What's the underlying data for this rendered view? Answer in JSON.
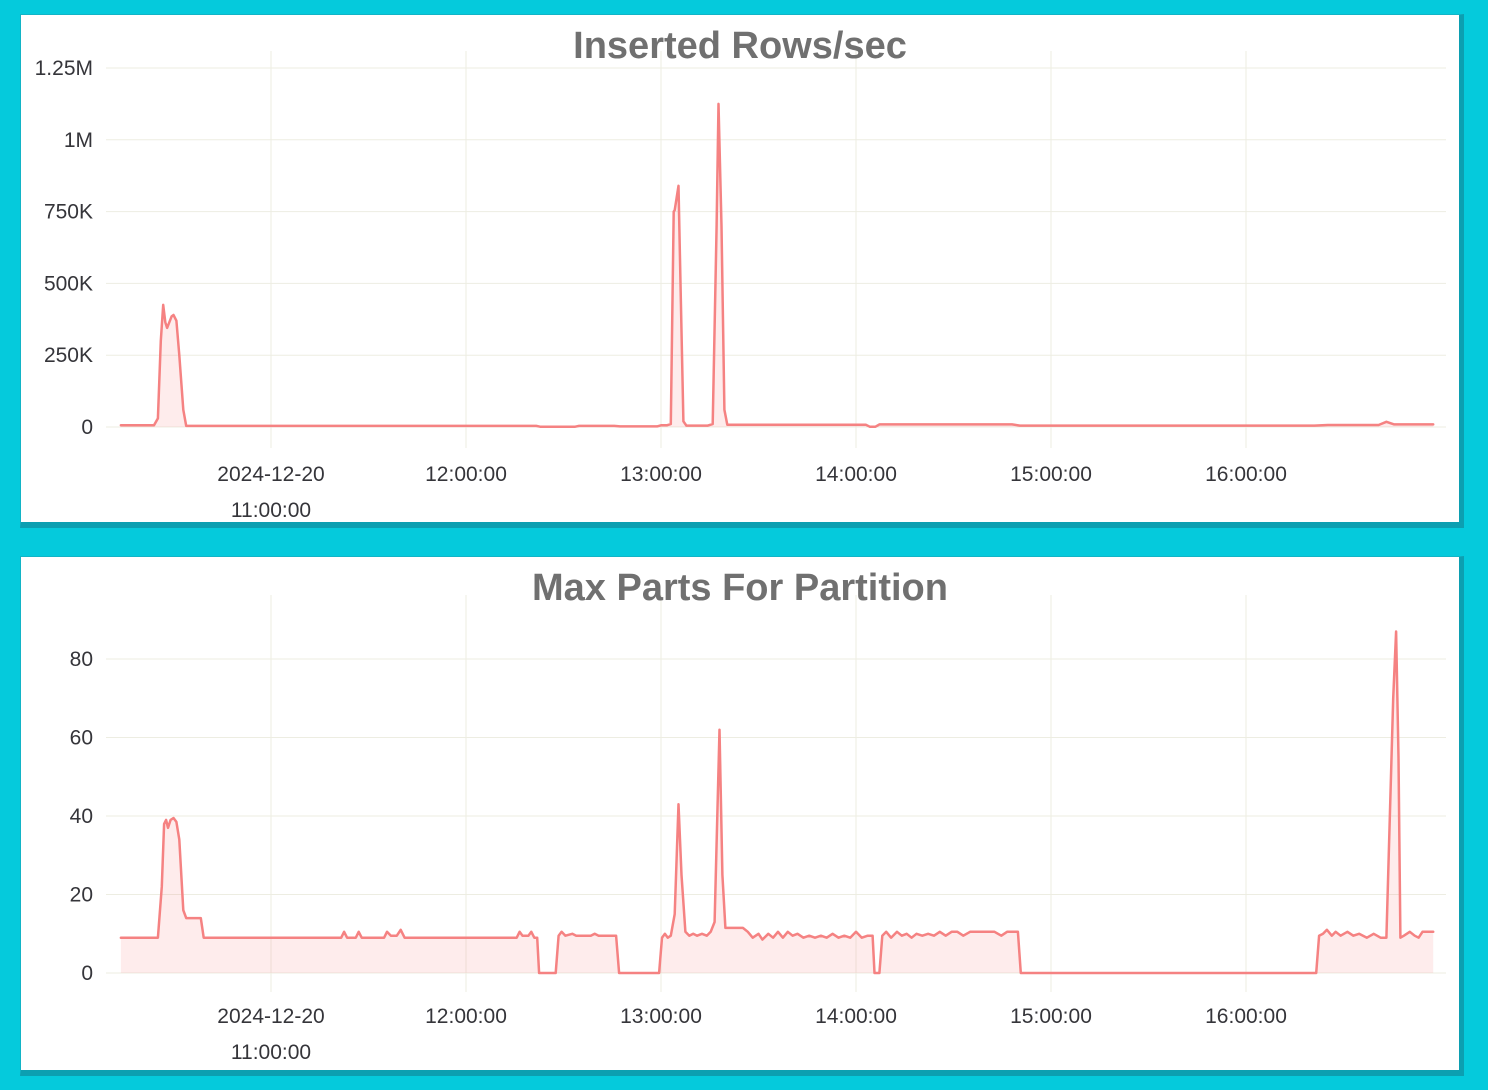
{
  "page": {
    "background_color": "#05CADC",
    "card_edge_color": "#0C9FB1",
    "card_background": "#FFFFFF"
  },
  "chart_data": [
    {
      "type": "area",
      "title": "Inserted Rows/sec",
      "xlabel": "",
      "ylabel": "",
      "grid": true,
      "legend": false,
      "line_color": "#F58282",
      "fill_color": "rgba(245,130,130,0.15)",
      "grid_color": "#EDEDE2",
      "x_unit": "hours on 2024-12-20",
      "x_range": [
        10.22,
        16.98
      ],
      "ylim": [
        0,
        1250000
      ],
      "y_ticks": [
        {
          "value": 0,
          "label": "0"
        },
        {
          "value": 250000,
          "label": "250K"
        },
        {
          "value": 500000,
          "label": "500K"
        },
        {
          "value": 750000,
          "label": "750K"
        },
        {
          "value": 1000000,
          "label": "1M"
        },
        {
          "value": 1250000,
          "label": "1.25M"
        }
      ],
      "x_ticks": [
        {
          "value": 11,
          "lines": [
            "2024-12-20",
            "11:00:00"
          ]
        },
        {
          "value": 12,
          "lines": [
            "12:00:00"
          ]
        },
        {
          "value": 13,
          "lines": [
            "13:00:00"
          ]
        },
        {
          "value": 14,
          "lines": [
            "14:00:00"
          ]
        },
        {
          "value": 15,
          "lines": [
            "15:00:00"
          ]
        },
        {
          "value": 16,
          "lines": [
            "16:00:00"
          ]
        }
      ],
      "points": [
        [
          10.23,
          6000
        ],
        [
          10.4,
          6000
        ],
        [
          10.42,
          30000
        ],
        [
          10.435,
          300000
        ],
        [
          10.447,
          425000
        ],
        [
          10.458,
          365000
        ],
        [
          10.467,
          345000
        ],
        [
          10.49,
          385000
        ],
        [
          10.5,
          390000
        ],
        [
          10.515,
          370000
        ],
        [
          10.53,
          250000
        ],
        [
          10.55,
          60000
        ],
        [
          10.565,
          4000
        ],
        [
          10.8,
          4000
        ],
        [
          11.5,
          4000
        ],
        [
          12.3,
          4000
        ],
        [
          12.36,
          4000
        ],
        [
          12.38,
          1000
        ],
        [
          12.56,
          1000
        ],
        [
          12.58,
          4000
        ],
        [
          12.76,
          4000
        ],
        [
          12.79,
          2000
        ],
        [
          12.98,
          2000
        ],
        [
          13.0,
          6000
        ],
        [
          13.03,
          6000
        ],
        [
          13.05,
          10000
        ],
        [
          13.065,
          750000
        ],
        [
          13.07,
          755000
        ],
        [
          13.09,
          840000
        ],
        [
          13.1,
          500000
        ],
        [
          13.115,
          20000
        ],
        [
          13.13,
          5000
        ],
        [
          13.24,
          5000
        ],
        [
          13.265,
          10000
        ],
        [
          13.285,
          700000
        ],
        [
          13.295,
          1125000
        ],
        [
          13.31,
          700000
        ],
        [
          13.325,
          60000
        ],
        [
          13.34,
          8000
        ],
        [
          13.6,
          8000
        ],
        [
          14.05,
          8000
        ],
        [
          14.07,
          1000
        ],
        [
          14.1,
          1000
        ],
        [
          14.12,
          9000
        ],
        [
          14.5,
          9000
        ],
        [
          14.8,
          9000
        ],
        [
          14.84,
          5000
        ],
        [
          15.3,
          5000
        ],
        [
          16.0,
          5000
        ],
        [
          16.35,
          5000
        ],
        [
          16.42,
          7000
        ],
        [
          16.68,
          7000
        ],
        [
          16.72,
          18000
        ],
        [
          16.76,
          9000
        ],
        [
          16.96,
          9000
        ]
      ]
    },
    {
      "type": "area",
      "title": "Max Parts For Partition",
      "xlabel": "",
      "ylabel": "",
      "grid": true,
      "legend": false,
      "line_color": "#F58282",
      "fill_color": "rgba(245,130,130,0.15)",
      "grid_color": "#EDEDE2",
      "x_unit": "hours on 2024-12-20",
      "x_range": [
        10.22,
        16.98
      ],
      "ylim": [
        0,
        88
      ],
      "y_ticks": [
        {
          "value": 0,
          "label": "0"
        },
        {
          "value": 20,
          "label": "20"
        },
        {
          "value": 40,
          "label": "40"
        },
        {
          "value": 60,
          "label": "60"
        },
        {
          "value": 80,
          "label": "80"
        }
      ],
      "x_ticks": [
        {
          "value": 11,
          "lines": [
            "2024-12-20",
            "11:00:00"
          ]
        },
        {
          "value": 12,
          "lines": [
            "12:00:00"
          ]
        },
        {
          "value": 13,
          "lines": [
            "13:00:00"
          ]
        },
        {
          "value": 14,
          "lines": [
            "14:00:00"
          ]
        },
        {
          "value": 15,
          "lines": [
            "15:00:00"
          ]
        },
        {
          "value": 16,
          "lines": [
            "16:00:00"
          ]
        }
      ],
      "points": [
        [
          10.23,
          9
        ],
        [
          10.42,
          9
        ],
        [
          10.44,
          22
        ],
        [
          10.452,
          38
        ],
        [
          10.462,
          39
        ],
        [
          10.472,
          37
        ],
        [
          10.485,
          39
        ],
        [
          10.5,
          39.5
        ],
        [
          10.515,
          38.5
        ],
        [
          10.53,
          34
        ],
        [
          10.55,
          16
        ],
        [
          10.565,
          14
        ],
        [
          10.64,
          14
        ],
        [
          10.655,
          9
        ],
        [
          10.75,
          9
        ],
        [
          11.0,
          9
        ],
        [
          11.36,
          9
        ],
        [
          11.375,
          10.5
        ],
        [
          11.39,
          9
        ],
        [
          11.435,
          9
        ],
        [
          11.45,
          10.5
        ],
        [
          11.465,
          9
        ],
        [
          11.58,
          9
        ],
        [
          11.595,
          10.5
        ],
        [
          11.615,
          9.5
        ],
        [
          11.645,
          9.5
        ],
        [
          11.665,
          11
        ],
        [
          11.685,
          9
        ],
        [
          11.9,
          9
        ],
        [
          12.2,
          9
        ],
        [
          12.26,
          9
        ],
        [
          12.275,
          10.5
        ],
        [
          12.29,
          9.5
        ],
        [
          12.32,
          9.5
        ],
        [
          12.335,
          10.5
        ],
        [
          12.35,
          9
        ],
        [
          12.365,
          9
        ],
        [
          12.375,
          0
        ],
        [
          12.46,
          0
        ],
        [
          12.475,
          9.5
        ],
        [
          12.49,
          10.5
        ],
        [
          12.51,
          9.5
        ],
        [
          12.545,
          10
        ],
        [
          12.565,
          9.5
        ],
        [
          12.64,
          9.5
        ],
        [
          12.66,
          10
        ],
        [
          12.68,
          9.5
        ],
        [
          12.77,
          9.5
        ],
        [
          12.785,
          0
        ],
        [
          12.99,
          0
        ],
        [
          13.005,
          9
        ],
        [
          13.02,
          10
        ],
        [
          13.035,
          9
        ],
        [
          13.05,
          9.5
        ],
        [
          13.07,
          15
        ],
        [
          13.09,
          43
        ],
        [
          13.105,
          25
        ],
        [
          13.125,
          10.5
        ],
        [
          13.145,
          9.5
        ],
        [
          13.165,
          10
        ],
        [
          13.185,
          9.5
        ],
        [
          13.21,
          10
        ],
        [
          13.235,
          9.5
        ],
        [
          13.255,
          10.5
        ],
        [
          13.275,
          13
        ],
        [
          13.3,
          62
        ],
        [
          13.315,
          25
        ],
        [
          13.33,
          11.5
        ],
        [
          13.42,
          11.5
        ],
        [
          13.445,
          10.5
        ],
        [
          13.47,
          9
        ],
        [
          13.5,
          10
        ],
        [
          13.52,
          8.5
        ],
        [
          13.55,
          10
        ],
        [
          13.575,
          9
        ],
        [
          13.6,
          10.5
        ],
        [
          13.625,
          9
        ],
        [
          13.65,
          10.5
        ],
        [
          13.675,
          9.5
        ],
        [
          13.7,
          10
        ],
        [
          13.73,
          9
        ],
        [
          13.76,
          9.5
        ],
        [
          13.79,
          9
        ],
        [
          13.82,
          9.5
        ],
        [
          13.85,
          9
        ],
        [
          13.88,
          10
        ],
        [
          13.91,
          9
        ],
        [
          13.94,
          9.5
        ],
        [
          13.97,
          9
        ],
        [
          14.0,
          10.5
        ],
        [
          14.03,
          9
        ],
        [
          14.06,
          9.5
        ],
        [
          14.085,
          9.5
        ],
        [
          14.095,
          0
        ],
        [
          14.12,
          0
        ],
        [
          14.135,
          9.5
        ],
        [
          14.155,
          10.5
        ],
        [
          14.18,
          9
        ],
        [
          14.21,
          10.5
        ],
        [
          14.235,
          9.5
        ],
        [
          14.26,
          10
        ],
        [
          14.285,
          9
        ],
        [
          14.31,
          10
        ],
        [
          14.34,
          9.5
        ],
        [
          14.37,
          10
        ],
        [
          14.4,
          9.5
        ],
        [
          14.43,
          10.5
        ],
        [
          14.46,
          9.5
        ],
        [
          14.49,
          10.5
        ],
        [
          14.52,
          10.5
        ],
        [
          14.55,
          9.5
        ],
        [
          14.585,
          10.5
        ],
        [
          14.63,
          10.5
        ],
        [
          14.67,
          10.5
        ],
        [
          14.71,
          10.5
        ],
        [
          14.745,
          9.5
        ],
        [
          14.775,
          10.5
        ],
        [
          14.83,
          10.5
        ],
        [
          14.845,
          0
        ],
        [
          15.2,
          0
        ],
        [
          15.8,
          0
        ],
        [
          16.36,
          0
        ],
        [
          16.375,
          9.5
        ],
        [
          16.395,
          10
        ],
        [
          16.415,
          11
        ],
        [
          16.44,
          9.5
        ],
        [
          16.46,
          10.5
        ],
        [
          16.485,
          9.5
        ],
        [
          16.52,
          10.5
        ],
        [
          16.55,
          9.5
        ],
        [
          16.58,
          10
        ],
        [
          16.62,
          9
        ],
        [
          16.655,
          10
        ],
        [
          16.69,
          9
        ],
        [
          16.72,
          9
        ],
        [
          16.755,
          70
        ],
        [
          16.77,
          87
        ],
        [
          16.782,
          55
        ],
        [
          16.792,
          9
        ],
        [
          16.81,
          9.5
        ],
        [
          16.84,
          10.5
        ],
        [
          16.865,
          9.5
        ],
        [
          16.885,
          9
        ],
        [
          16.905,
          10.5
        ],
        [
          16.935,
          10.5
        ],
        [
          16.96,
          10.5
        ]
      ]
    }
  ]
}
